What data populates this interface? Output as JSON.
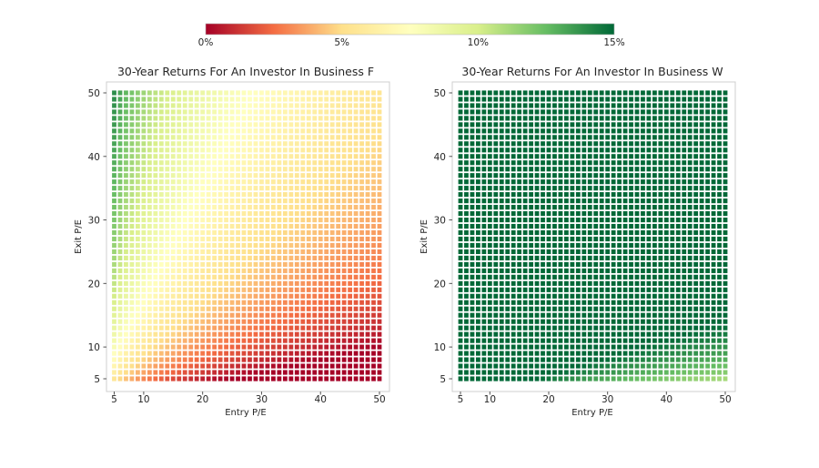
{
  "chart_data": {
    "type": "heatmap",
    "colorbar": {
      "ticks": [
        0,
        5,
        10,
        15
      ],
      "tick_labels": [
        "0%",
        "5%",
        "10%",
        "15%"
      ],
      "range": [
        0,
        15
      ],
      "colormap": "RdYlGn",
      "colors": [
        "#a50026",
        "#f46d43",
        "#fee08b",
        "#ffffbf",
        "#d9ef8b",
        "#66bd63",
        "#006837"
      ]
    },
    "panels": [
      {
        "title": "30-Year Returns For An Investor In Business F",
        "xlabel": "Entry P/E",
        "ylabel": "Exit P/E",
        "xlim": [
          5,
          50
        ],
        "ylim": [
          5,
          50
        ],
        "xticks": [
          5,
          10,
          20,
          30,
          40,
          50
        ],
        "yticks": [
          5,
          10,
          20,
          30,
          40,
          50
        ],
        "grid_step": 1,
        "years": 30,
        "underlying_return_pct": 5.5
      },
      {
        "title": "30-Year Returns For An Investor In Business W",
        "xlabel": "Entry P/E",
        "ylabel": "Exit P/E",
        "xlim": [
          5,
          50
        ],
        "ylim": [
          5,
          50
        ],
        "xticks": [
          5,
          10,
          20,
          30,
          40,
          50
        ],
        "yticks": [
          5,
          10,
          20,
          30,
          40,
          50
        ],
        "grid_step": 1,
        "years": 30,
        "underlying_return_pct": 20
      }
    ]
  }
}
